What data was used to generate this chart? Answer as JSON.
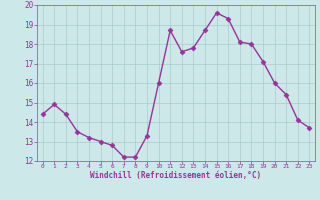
{
  "x": [
    0,
    1,
    2,
    3,
    4,
    5,
    6,
    7,
    8,
    9,
    10,
    11,
    12,
    13,
    14,
    15,
    16,
    17,
    18,
    19,
    20,
    21,
    22,
    23
  ],
  "y": [
    14.4,
    14.9,
    14.4,
    13.5,
    13.2,
    13.0,
    12.8,
    12.2,
    12.2,
    13.3,
    16.0,
    18.7,
    17.6,
    17.8,
    18.7,
    19.6,
    19.3,
    18.1,
    18.0,
    17.1,
    16.0,
    15.4,
    14.1,
    13.7
  ],
  "line_color": "#993399",
  "marker": "D",
  "marker_size": 2.5,
  "xlim": [
    -0.5,
    23.5
  ],
  "ylim": [
    12,
    20
  ],
  "yticks": [
    12,
    13,
    14,
    15,
    16,
    17,
    18,
    19,
    20
  ],
  "xticks": [
    0,
    1,
    2,
    3,
    4,
    5,
    6,
    7,
    8,
    9,
    10,
    11,
    12,
    13,
    14,
    15,
    16,
    17,
    18,
    19,
    20,
    21,
    22,
    23
  ],
  "xlabel": "Windchill (Refroidissement éolien,°C)",
  "bg_color": "#cce8e8",
  "grid_color": "#aacccc",
  "font_color": "#993399",
  "linewidth": 1.0,
  "spine_color": "#7777aa"
}
